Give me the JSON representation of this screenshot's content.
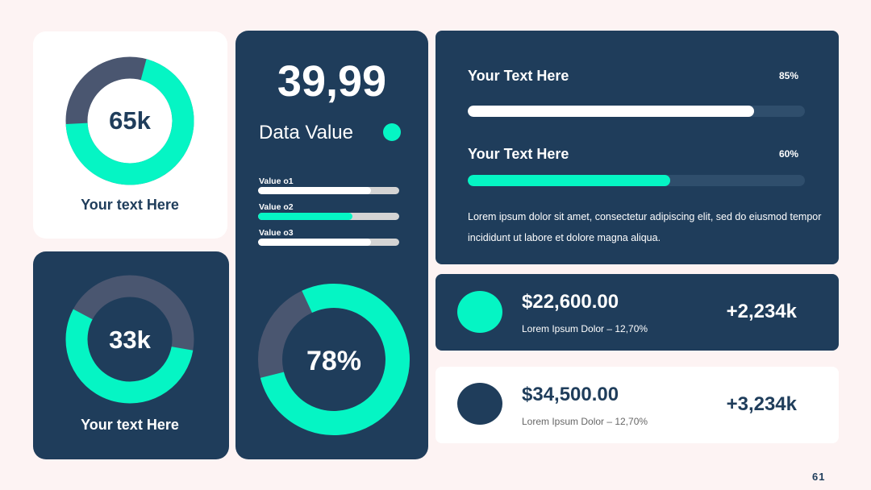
{
  "card_a": {
    "value": "65k",
    "label": "Your text Here",
    "fill": 70
  },
  "card_b": {
    "value": "33k",
    "label": "Your text Here",
    "fill": 55
  },
  "card_c": {
    "big_number": "39,99",
    "title": "Data Value",
    "bars": [
      {
        "label": "Value o1",
        "fill": 80
      },
      {
        "label": "Value o2",
        "fill": 67
      },
      {
        "label": "Value o3",
        "fill": 80
      }
    ],
    "donut_label": "78%"
  },
  "card_d": {
    "rows": [
      {
        "title": "Your Text Here",
        "percent": "85%"
      },
      {
        "title": "Your Text Here",
        "percent": "60%"
      }
    ],
    "paragraph": "Lorem ipsum dolor sit amet, consectetur adipiscing elit, sed do eiusmod tempor incididunt ut labore et dolore magna aliqua."
  },
  "card_e": {
    "amount": "$22,600.00",
    "caption": "Lorem Ipsum Dolor – 12,70%",
    "change": "+2,234k"
  },
  "card_f": {
    "amount": "$34,500.00",
    "caption": "Lorem Ipsum Dolor – 12,70%",
    "change": "+3,234k"
  },
  "page_number": "61"
}
